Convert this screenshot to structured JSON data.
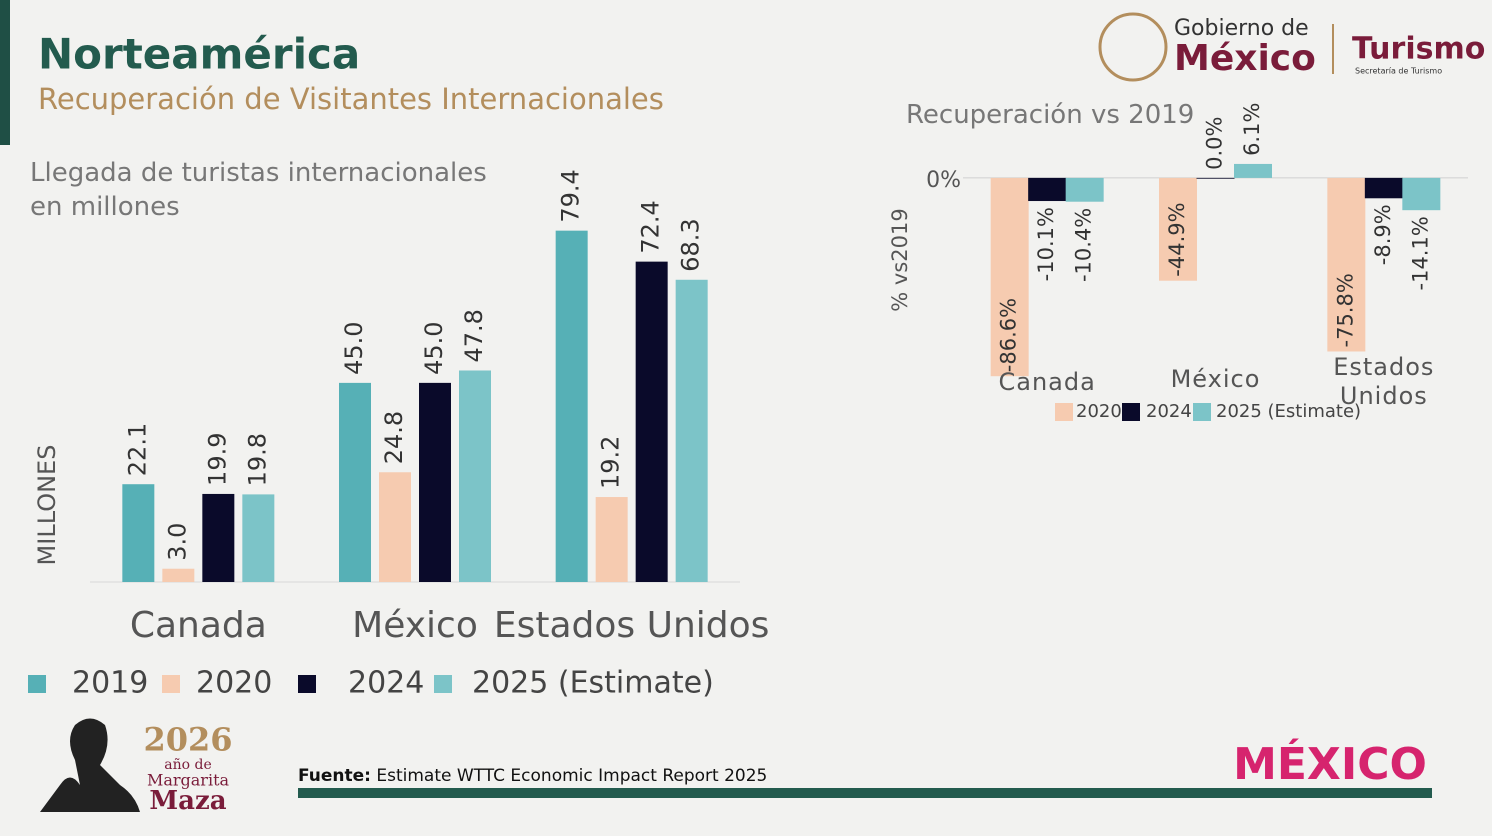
{
  "header": {
    "title": "Norteamérica",
    "subtitle": "Recuperación de Visitantes Internacionales"
  },
  "logos": {
    "gobierno_top": "Gobierno de",
    "gobierno_bottom": "México",
    "turismo": "Turismo",
    "secretaria": "Secretaría de Turismo",
    "year": "2026",
    "ano_de": "año de",
    "margarita": "Margarita",
    "maza": "Maza",
    "brand": "MÉXICO"
  },
  "footer": {
    "source_label": "Fuente:",
    "source": "Estimate WTTC Economic Impact Report 2025"
  },
  "chart_data": [
    {
      "type": "bar",
      "title": "Llegada de turistas  internacionales en millones",
      "y_label": "MILLONES",
      "categories": [
        "Canada",
        "México",
        "Estados Unidos"
      ],
      "ylim": [
        0,
        80
      ],
      "series": [
        {
          "name": "2019",
          "color": "#56b0b6",
          "values": [
            22.1,
            45.0,
            79.4
          ],
          "value_labels": [
            "22.1",
            "45.0",
            "79.4"
          ]
        },
        {
          "name": "2020",
          "color": "#f6cbb0",
          "values": [
            3.0,
            24.8,
            19.2
          ],
          "value_labels": [
            "3.0",
            "24.8",
            "19.2"
          ]
        },
        {
          "name": "2024",
          "color": "#0a0a2a",
          "values": [
            19.9,
            45.0,
            72.4
          ],
          "value_labels": [
            "19.9",
            "45.0",
            "72.4"
          ]
        },
        {
          "name": "2025 (Estimate)",
          "color": "#7cc4c8",
          "values": [
            19.8,
            47.8,
            68.3
          ],
          "value_labels": [
            "19.8",
            "47.8",
            "68.3"
          ]
        }
      ]
    },
    {
      "type": "bar",
      "title": "Recuperación vs 2019",
      "y_label": "% vs2019",
      "categories": [
        "Canada",
        "México",
        "Estados Unidos"
      ],
      "ylim": [
        -90,
        10
      ],
      "yticks": [
        {
          "value": 0,
          "label": "0%"
        }
      ],
      "series": [
        {
          "name": "2020",
          "color": "#f6cbb0",
          "values": [
            -86.6,
            -44.9,
            -75.8
          ],
          "value_labels": [
            "-86.6%",
            "-44.9%",
            "-75.8%"
          ]
        },
        {
          "name": "2024",
          "color": "#0a0a2a",
          "values": [
            -10.1,
            0.0,
            -8.9
          ],
          "value_labels": [
            "-10.1%",
            "0.0%",
            "-8.9%"
          ]
        },
        {
          "name": "2025 (Estimate)",
          "color": "#7cc4c8",
          "values": [
            -10.4,
            6.1,
            -14.1
          ],
          "value_labels": [
            "-10.4%",
            "6.1%",
            "-14.1%"
          ]
        }
      ]
    }
  ]
}
